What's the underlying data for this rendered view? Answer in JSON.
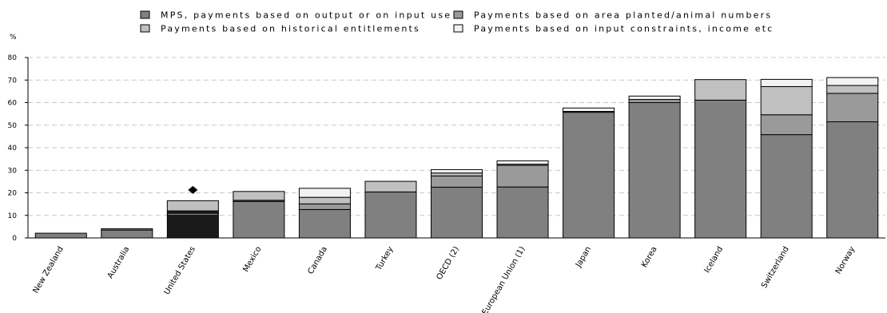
{
  "chart_data": {
    "type": "bar",
    "stacked": true,
    "unit_label": "%",
    "ylim": [
      0,
      80
    ],
    "y_ticks": [
      0,
      10,
      20,
      30,
      40,
      50,
      60,
      70,
      80
    ],
    "grid": "horizontal dashed",
    "legend_position": "top",
    "categories": [
      "New Zealand",
      "Australia",
      "United States",
      "Mexico",
      "Canada",
      "Turkey",
      "OECD (2)",
      "European Union (1)",
      "Japan",
      "Korea",
      "Iceland",
      "Switzerland",
      "Norway"
    ],
    "series": [
      {
        "name": "MPS, payments based on output or on input use",
        "color": "#808080",
        "values": [
          2.1,
          3.5,
          10.5,
          16.2,
          12.6,
          20.4,
          22.5,
          22.6,
          55.7,
          60.0,
          61.1,
          45.8,
          51.5
        ]
      },
      {
        "name": "Payments based on area planted/animal numbers",
        "color": "#9a9a9a",
        "values": [
          0,
          0.6,
          1.5,
          0.5,
          2.5,
          0,
          5.0,
          9.6,
          0.4,
          1.4,
          0,
          8.8,
          12.6
        ]
      },
      {
        "name": "Payments based on historical entitlements",
        "color": "#c0c0c0",
        "values": [
          0,
          0,
          4.5,
          3.9,
          2.9,
          4.7,
          1.3,
          0.5,
          0,
          0,
          9.1,
          12.5,
          3.5
        ]
      },
      {
        "name": "Payments based on input constraints, income etc",
        "color": "#f2f2f2",
        "values": [
          0,
          0,
          0,
          0,
          4.0,
          0,
          1.5,
          1.5,
          1.5,
          1.5,
          0,
          3.2,
          3.5
        ]
      }
    ],
    "highlight": {
      "category": "United States",
      "color": "#1a1a1a"
    },
    "markers": [
      {
        "category": "United States",
        "value": 21.3,
        "shape": "diamond"
      }
    ]
  }
}
